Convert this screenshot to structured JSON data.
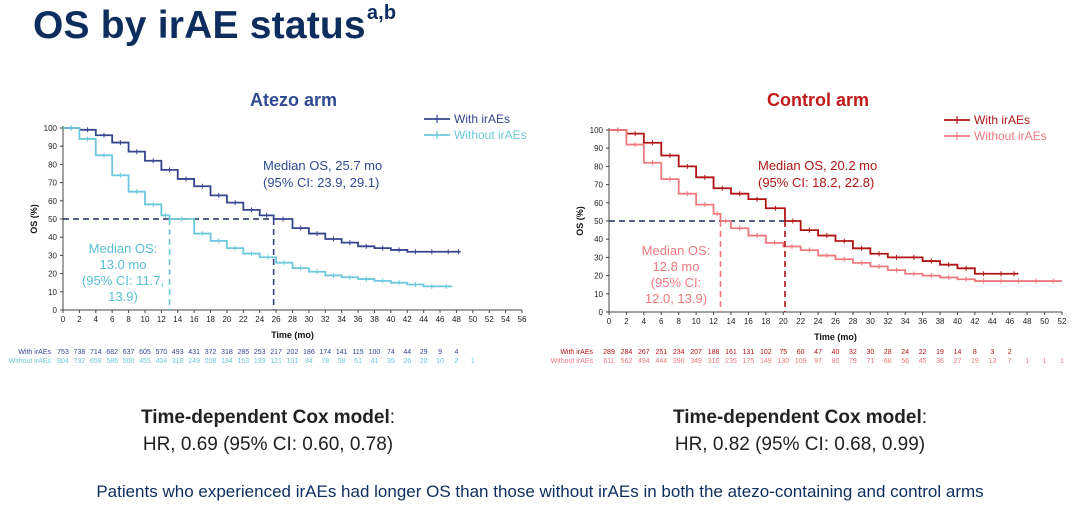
{
  "title": "OS by irAE status",
  "title_superscript": "a,b",
  "chart_data": [
    {
      "type": "line",
      "panel_title": "Atezo arm",
      "xlabel": "Time (mo)",
      "ylabel": "OS (%)",
      "xlim": [
        0,
        56
      ],
      "ylim": [
        0,
        100
      ],
      "xticks": [
        0,
        2,
        4,
        6,
        8,
        10,
        12,
        14,
        16,
        18,
        20,
        22,
        24,
        26,
        28,
        30,
        32,
        34,
        36,
        38,
        40,
        42,
        44,
        46,
        48,
        50,
        52,
        54,
        56
      ],
      "yticks": [
        0,
        10,
        20,
        30,
        40,
        50,
        60,
        70,
        80,
        90,
        100
      ],
      "colors": {
        "title": "#2e4a92",
        "with": "#35468f",
        "without": "#6cc9dd",
        "median_annotation_with": "#2e4a92",
        "median_annotation_without": "#58bfd4"
      },
      "series": [
        {
          "name": "With irAEs",
          "color": "#35468f",
          "x": [
            0,
            2,
            4,
            6,
            8,
            10,
            12,
            14,
            16,
            18,
            20,
            22,
            24,
            25.7,
            28,
            30,
            32,
            34,
            36,
            38,
            40,
            42,
            44,
            46,
            48,
            48.5
          ],
          "y": [
            100,
            99,
            96,
            92,
            87,
            82,
            77,
            72,
            68,
            63,
            59,
            55,
            52,
            50,
            45,
            42,
            39,
            37,
            35,
            34,
            33,
            32,
            32,
            32,
            32,
            32
          ]
        },
        {
          "name": "Without irAEs",
          "color": "#6cc9dd",
          "x": [
            0,
            2,
            4,
            6,
            8,
            10,
            12,
            13.0,
            16,
            18,
            20,
            22,
            24,
            26,
            28,
            30,
            32,
            34,
            36,
            38,
            40,
            42,
            44,
            46,
            47.5
          ],
          "y": [
            100,
            94,
            85,
            74,
            65,
            58,
            52,
            50,
            42,
            38,
            34,
            31,
            29,
            26,
            23,
            21,
            19,
            18,
            17,
            16,
            15,
            14,
            13,
            13,
            13
          ]
        }
      ],
      "median_annotation_with": {
        "line1": "Median OS, 25.7 mo",
        "line2": "(95% CI: 23.9, 29.1)"
      },
      "median_annotation_without": {
        "lines": [
          "Median OS:",
          "13.0 mo",
          "(95% CI: 11.7,",
          "13.9)"
        ]
      },
      "medians": {
        "with": 25.7,
        "without": 13.0
      },
      "at_risk": {
        "times": [
          0,
          2,
          4,
          6,
          8,
          10,
          12,
          14,
          16,
          18,
          20,
          22,
          24,
          26,
          28,
          30,
          32,
          34,
          36,
          38,
          40,
          42,
          44,
          46,
          48,
          50
        ],
        "with": {
          "label": "With irAEs",
          "values": [
            "753",
            "738",
            "714",
            "682",
            "637",
            "605",
            "570",
            "493",
            "431",
            "372",
            "318",
            "285",
            "253",
            "217",
            "202",
            "186",
            "174",
            "141",
            "115",
            "100",
            "74",
            "44",
            "29",
            "9",
            "4"
          ]
        },
        "without": {
          "label": "Without irAEs",
          "values": [
            "804",
            "732",
            "658",
            "586",
            "500",
            "455",
            "404",
            "318",
            "249",
            "208",
            "184",
            "153",
            "133",
            "121",
            "101",
            "84",
            "78",
            "58",
            "51",
            "41",
            "35",
            "26",
            "20",
            "10",
            "2",
            "1"
          ]
        }
      },
      "cox": {
        "heading": "Time-dependent Cox model",
        "colon": ":",
        "hr": "HR, 0.69 (95% CI: 0.60, 0.78)"
      }
    },
    {
      "type": "line",
      "panel_title": "Control arm",
      "xlabel": "Time (mo)",
      "ylabel": "OS (%)",
      "xlim": [
        0,
        52
      ],
      "ylim": [
        0,
        100
      ],
      "xticks": [
        0,
        2,
        4,
        6,
        8,
        10,
        12,
        14,
        16,
        18,
        20,
        22,
        24,
        26,
        28,
        30,
        32,
        34,
        36,
        38,
        40,
        42,
        44,
        46,
        48,
        50,
        52
      ],
      "yticks": [
        0,
        10,
        20,
        30,
        40,
        50,
        60,
        70,
        80,
        90,
        100
      ],
      "colors": {
        "title": "#c01a1a",
        "with": "#b01515",
        "without": "#ee7a80",
        "median_annotation_with": "#b01515",
        "median_annotation_without": "#ee7a80"
      },
      "series": [
        {
          "name": "With irAEs",
          "color": "#b01515",
          "x": [
            0,
            2,
            4,
            6,
            8,
            10,
            12,
            14,
            16,
            18,
            20.2,
            22,
            24,
            26,
            28,
            30,
            32,
            34,
            36,
            38,
            40,
            42,
            44,
            46,
            47
          ],
          "y": [
            100,
            98,
            93,
            86,
            80,
            74,
            68,
            65,
            62,
            57,
            50,
            45,
            42,
            39,
            35,
            32,
            30,
            30,
            28,
            26,
            24,
            21,
            21,
            21,
            21
          ]
        },
        {
          "name": "Without irAEs",
          "color": "#ee7a80",
          "x": [
            0,
            2,
            4,
            6,
            8,
            10,
            12,
            12.8,
            14,
            16,
            18,
            20,
            22,
            24,
            26,
            28,
            30,
            32,
            34,
            36,
            38,
            40,
            42,
            44,
            46,
            48,
            50,
            52
          ],
          "y": [
            100,
            92,
            82,
            73,
            65,
            59,
            54,
            50,
            46,
            42,
            38,
            36,
            34,
            31,
            29,
            27,
            25,
            23,
            21,
            20,
            19,
            18,
            17,
            17,
            17,
            17,
            17,
            17
          ]
        }
      ],
      "median_annotation_with": {
        "line1": "Median OS, 20.2 mo",
        "line2": "(95% CI: 18.2, 22.8)"
      },
      "median_annotation_without": {
        "lines": [
          "Median OS:",
          "12.8 mo",
          "(95% CI:",
          "12.0, 13.9)"
        ]
      },
      "medians": {
        "with": 20.2,
        "without": 12.8
      },
      "at_risk": {
        "times": [
          0,
          2,
          4,
          6,
          8,
          10,
          12,
          14,
          16,
          18,
          20,
          22,
          24,
          26,
          28,
          30,
          32,
          34,
          36,
          38,
          40,
          42,
          44,
          46,
          48,
          50,
          52
        ],
        "with": {
          "label": "With irAEs",
          "values": [
            "289",
            "284",
            "267",
            "251",
            "234",
            "207",
            "188",
            "161",
            "131",
            "102",
            "75",
            "60",
            "47",
            "40",
            "32",
            "30",
            "28",
            "24",
            "22",
            "19",
            "14",
            "8",
            "3",
            "2"
          ]
        },
        "without": {
          "label": "Without irAEs",
          "values": [
            "611",
            "562",
            "494",
            "444",
            "390",
            "349",
            "316",
            "235",
            "175",
            "149",
            "130",
            "109",
            "97",
            "80",
            "79",
            "71",
            "68",
            "56",
            "45",
            "36",
            "27",
            "19",
            "13",
            "7",
            "1",
            "1",
            "1"
          ]
        }
      },
      "cox": {
        "heading": "Time-dependent Cox model",
        "colon": ":",
        "hr": "HR, 0.82 (95% CI: 0.68, 0.99)"
      }
    }
  ],
  "footer": "Patients who experienced irAEs had longer OS than those without irAEs in both the atezo-containing and control arms"
}
